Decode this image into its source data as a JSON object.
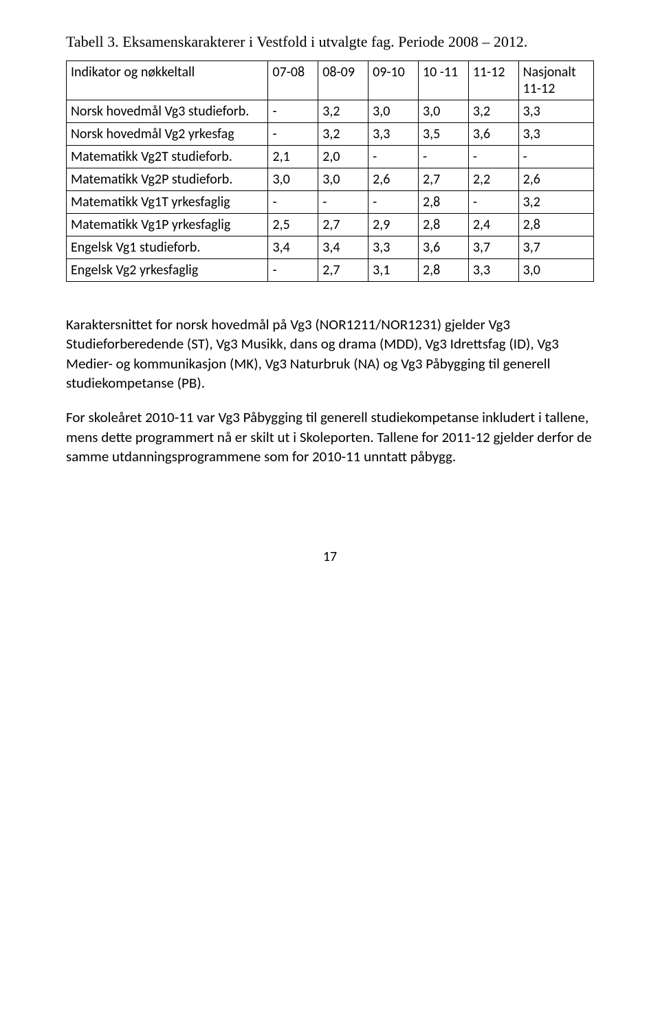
{
  "caption": "Tabell 3. Eksamenskarakterer i Vestfold i utvalgte fag. Periode 2008 – 2012.",
  "headers": [
    "Indikator og nøkkeltall",
    "07-08",
    "08-09",
    "09-10",
    "10 -11",
    "11-12",
    "Nasjonalt 11-12"
  ],
  "rows": [
    [
      "Norsk hovedmål Vg3 studieforb.",
      "-",
      "3,2",
      "3,0",
      "3,0",
      "3,2",
      "3,3"
    ],
    [
      "Norsk hovedmål Vg2 yrkesfag",
      "-",
      "3,2",
      "3,3",
      "3,5",
      "3,6",
      "3,3"
    ],
    [
      "Matematikk Vg2T studieforb.",
      "2,1",
      "2,0",
      "-",
      "-",
      "-",
      "-"
    ],
    [
      "Matematikk Vg2P studieforb.",
      "3,0",
      "3,0",
      "2,6",
      "2,7",
      "2,2",
      "2,6"
    ],
    [
      "Matematikk Vg1T yrkesfaglig",
      "-",
      "-",
      "-",
      "2,8",
      "-",
      "3,2"
    ],
    [
      "Matematikk Vg1P yrkesfaglig",
      "2,5",
      "2,7",
      "2,9",
      "2,8",
      "2,4",
      "2,8"
    ],
    [
      "Engelsk Vg1 studieforb.",
      "3,4",
      "3,4",
      "3,3",
      "3,6",
      "3,7",
      "3,7"
    ],
    [
      "Engelsk Vg2 yrkesfaglig",
      "-",
      "2,7",
      "3,1",
      "2,8",
      "3,3",
      "3,0"
    ]
  ],
  "paragraphs": [
    "Karaktersnittet for norsk hovedmål på Vg3 (NOR1211/NOR1231) gjelder Vg3 Studieforberedende (ST), Vg3 Musikk, dans og drama (MDD), Vg3 Idrettsfag (ID), Vg3 Medier- og kommunikasjon (MK), Vg3 Naturbruk (NA) og Vg3 Påbygging til generell studiekompetanse (PB).",
    "For skoleåret 2010-11 var Vg3 Påbygging til generell studiekompetanse inkludert i tallene, mens dette programmert nå er skilt ut i Skoleporten. Tallene for 2011-12 gjelder derfor de samme utdanningsprogrammene som for 2010-11 unntatt påbygg."
  ],
  "page_number": "17"
}
